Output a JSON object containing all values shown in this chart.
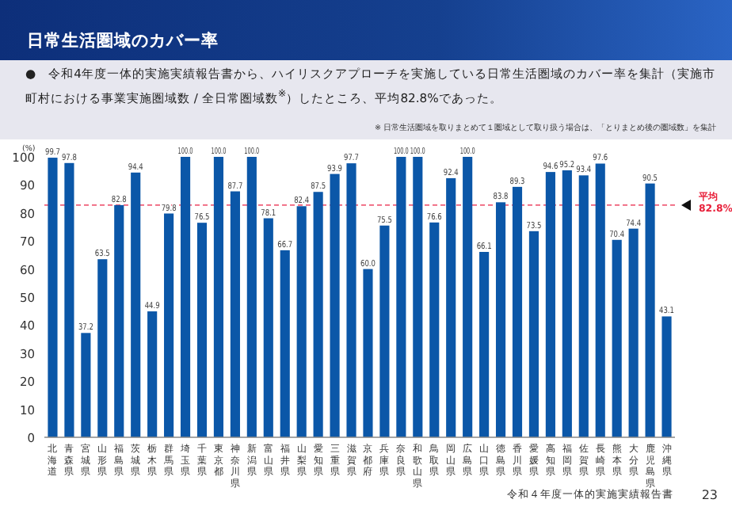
{
  "chart_data": {
    "type": "bar",
    "title": "日常生活圏域のカバー率",
    "subtitle": "●　令和4年度一体的実施実績報告書から、ハイリスクアプローチを実施している日常生活圏域のカバー率を集計（実施市町村における事業実施圏域数 / 全日常圏域数$^{※}$）したところ、平均82.8%であった。",
    "annotations": [
      "※ 日常生活圏域を取りまとめて１圏域として取り扱う場合は、「とりまとめ後の圏域数」を集計",
      "令和４年度一体的実施実績報告書",
      "23"
    ],
    "ylabel": "(%)",
    "categories": [
      "北海道",
      "青森県",
      "宮城県",
      "山形県",
      "福島県",
      "茨城県",
      "栃木県",
      "群馬県",
      "埼玉県",
      "千葉県",
      "東京都",
      "神奈川県",
      "新潟県",
      "富山県",
      "福井県",
      "山梨県",
      "愛知県",
      "三重県",
      "滋賀県",
      "京都府",
      "兵庫県",
      "奈良県",
      "和歌山県",
      "鳥取県",
      "岡山県",
      "広島県",
      "山口県",
      "徳島県",
      "香川県",
      "愛媛県",
      "高知県",
      "福岡県",
      "佐賀県",
      "長崎県",
      "熊本県",
      "大分県",
      "鹿児島県",
      "沖縄県"
    ],
    "values": [
      99.7,
      97.8,
      37.2,
      63.5,
      82.8,
      94.4,
      44.9,
      79.8,
      100.0,
      76.5,
      100.0,
      87.7,
      100.0,
      78.1,
      66.7,
      82.4,
      87.5,
      93.9,
      97.7,
      60.0,
      75.5,
      100.0,
      100.0,
      76.6,
      92.4,
      100.0,
      66.1,
      83.8,
      89.3,
      73.5,
      94.6,
      95.2,
      93.4,
      97.6,
      70.4,
      74.4,
      90.5,
      43.1
    ],
    "color": "#0b57a8",
    "value_labels": [
      "99.7",
      "97.8",
      "37.2",
      "63.5",
      "82.8",
      "94.4",
      "44.9",
      "79.8",
      "100.0",
      "76.5",
      "100.0",
      "87.7",
      "100.0",
      "78.1",
      "66.7",
      "82.4",
      "87.5",
      "93.9",
      "97.7",
      "60.0",
      "75.5",
      "100.0",
      "100.0",
      "76.6",
      "92.4",
      "100.0",
      "66.1",
      "83.8",
      "89.3",
      "73.5",
      "94.6",
      "95.2",
      "93.4",
      "97.6",
      "70.4",
      "74.4",
      "90.5",
      "43.1"
    ],
    "ylim": [
      0,
      100
    ],
    "yticks": [
      0,
      10,
      20,
      30,
      40,
      50,
      60,
      70,
      80,
      90,
      100
    ],
    "ref_lines": [
      {
        "axis": "y",
        "value": 82.8,
        "label": "平均 82.8%",
        "color": "#f0607a",
        "line_style": "dashed"
      }
    ]
  }
}
